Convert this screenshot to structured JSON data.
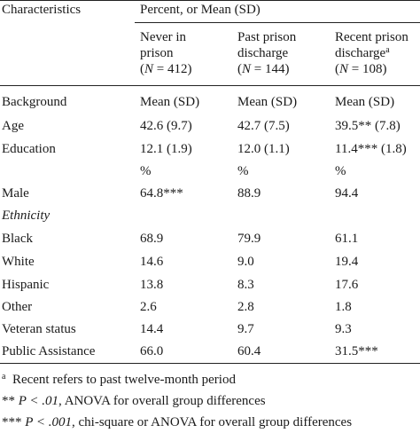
{
  "header": {
    "col1": "Characteristics",
    "group": "Percent, or Mean (SD)",
    "col2": [
      "Never in",
      "prison",
      "(N = 412)"
    ],
    "col3": [
      "Past prison",
      "discharge",
      "(N = 144)"
    ],
    "col4": [
      "Recent prison",
      "discharge",
      "(N = 108)"
    ],
    "col4_sup": "a"
  },
  "rows": [
    {
      "label": "Background",
      "v": [
        "Mean (SD)",
        "Mean (SD)",
        "Mean (SD)"
      ]
    },
    {
      "label": "Age",
      "v": [
        "42.6 (9.7)",
        "42.7 (7.5)",
        "39.5** (7.8)"
      ]
    },
    {
      "label": "Education",
      "v": [
        "12.1 (1.9)",
        "12.0 (1.1)",
        "11.4*** (1.8)"
      ]
    },
    {
      "label": "",
      "v": [
        "%",
        "%",
        "%"
      ]
    },
    {
      "label": "Male",
      "v": [
        "64.8***",
        "88.9",
        "94.4"
      ]
    },
    {
      "label": "Ethnicity",
      "v": [
        "",
        "",
        ""
      ]
    },
    {
      "label": "Black",
      "v": [
        "68.9",
        "79.9",
        "61.1"
      ]
    },
    {
      "label": "White",
      "v": [
        "14.6",
        "9.0",
        "19.4"
      ]
    },
    {
      "label": "Hispanic",
      "v": [
        "13.8",
        "8.3",
        "17.6"
      ]
    },
    {
      "label": "Other",
      "v": [
        "2.6",
        "2.8",
        "1.8"
      ]
    },
    {
      "label": "Veteran status",
      "v": [
        "14.4",
        "9.7",
        "9.3"
      ]
    },
    {
      "label": "Public Assistance",
      "v": [
        "66.0",
        "60.4",
        "31.5***"
      ]
    }
  ],
  "footnotes": {
    "a_mark": "a",
    "a_text": "Recent refers to past twelve-month period",
    "two_star": "**",
    "two_star_text": ", ANOVA for overall group differences",
    "two_star_p": "P < .01",
    "three_star": "***",
    "three_star_p": "P < .001",
    "three_star_text": ", chi-square or ANOVA for overall group differences"
  }
}
